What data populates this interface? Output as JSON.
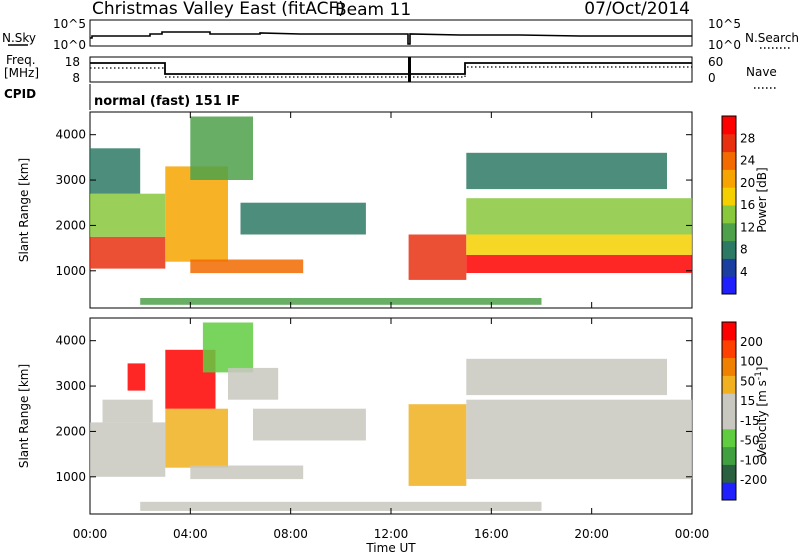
{
  "header": {
    "station": "Christmas Valley East (fitACF)",
    "beam": "Beam 11",
    "date": "07/Oct/2014"
  },
  "panels": {
    "nsky_label": "N.Sky",
    "nsearch_label": "N.Search",
    "noise_ticks_top": "10^5",
    "noise_ticks_bottom": "10^0",
    "freq_label_top": "Freq.",
    "freq_label_bottom": "[MHz]",
    "freq_ticks_top": "18",
    "freq_ticks_bottom": "8",
    "nave_label": "Nave",
    "nave_ticks_top": "60",
    "nave_ticks_bottom": "0",
    "cpid_label": "CPID",
    "cpid_value": "normal (fast) 151 IF"
  },
  "chart_data": [
    {
      "type": "heatmap",
      "name": "power",
      "ylabel": "Slant Range [km]",
      "xlabel": "Time UT",
      "x_ticks": [
        "00:00",
        "04:00",
        "08:00",
        "12:00",
        "16:00",
        "20:00",
        "00:00"
      ],
      "y_ticks": [
        "1000",
        "2000",
        "3000",
        "4000"
      ],
      "xlim_hours": [
        0,
        24
      ],
      "ylim_km": [
        180,
        4500
      ],
      "colorbar": {
        "label": "Power [dB]",
        "ticks": [
          "28",
          "24",
          "20",
          "16",
          "12",
          "8",
          "4"
        ],
        "range": [
          0,
          30
        ],
        "colors": [
          "#2020ff",
          "#1a3fa0",
          "#2d7a64",
          "#4ea14a",
          "#88c83c",
          "#f4d000",
          "#f7a400",
          "#f26a00",
          "#e83010",
          "#ff0000"
        ]
      },
      "regions": [
        {
          "t0": 0.0,
          "t1": 3.0,
          "r0": 1050,
          "r1": 1750,
          "level": 26
        },
        {
          "t0": 0.0,
          "t1": 3.0,
          "r0": 1750,
          "r1": 2700,
          "level": 14
        },
        {
          "t0": 0.0,
          "t1": 2.0,
          "r0": 2700,
          "r1": 3700,
          "level": 8
        },
        {
          "t0": 3.0,
          "t1": 5.5,
          "r0": 1200,
          "r1": 3300,
          "level": 18
        },
        {
          "t0": 4.0,
          "t1": 6.5,
          "r0": 3000,
          "r1": 4400,
          "level": 10
        },
        {
          "t0": 6.0,
          "t1": 11.0,
          "r0": 1800,
          "r1": 2500,
          "level": 8
        },
        {
          "t0": 4.0,
          "t1": 8.5,
          "r0": 950,
          "r1": 1250,
          "level": 22
        },
        {
          "t0": 12.7,
          "t1": 15.0,
          "r0": 800,
          "r1": 1800,
          "level": 26
        },
        {
          "t0": 15.0,
          "t1": 24.0,
          "r0": 950,
          "r1": 1350,
          "level": 28
        },
        {
          "t0": 15.0,
          "t1": 24.0,
          "r0": 1350,
          "r1": 1800,
          "level": 16
        },
        {
          "t0": 15.0,
          "t1": 24.0,
          "r0": 1800,
          "r1": 2600,
          "level": 12
        },
        {
          "t0": 15.0,
          "t1": 23.0,
          "r0": 2800,
          "r1": 3600,
          "level": 6
        },
        {
          "t0": 2.0,
          "t1": 18.0,
          "r0": 250,
          "r1": 400,
          "level": 10
        }
      ]
    },
    {
      "type": "heatmap",
      "name": "velocity",
      "ylabel": "Slant Range [km]",
      "xlabel": "Time UT",
      "x_ticks": [
        "00:00",
        "04:00",
        "08:00",
        "12:00",
        "16:00",
        "20:00",
        "00:00"
      ],
      "y_ticks": [
        "1000",
        "2000",
        "3000",
        "4000"
      ],
      "xlim_hours": [
        0,
        24
      ],
      "ylim_km": [
        180,
        4500
      ],
      "colorbar": {
        "label": "Velocity [m s^-1]",
        "ticks": [
          "200",
          "100",
          "50",
          "15",
          "-15",
          "-50",
          "-100",
          "-200"
        ],
        "range": [
          -250,
          250
        ],
        "colors": [
          "#2020ff",
          "#2a6040",
          "#40a040",
          "#60cc40",
          "#c8c8c0",
          "#c8c8c0",
          "#f0b020",
          "#f08000",
          "#ff4000",
          "#ff0000"
        ]
      },
      "regions": [
        {
          "t0": 0.0,
          "t1": 3.0,
          "r0": 1000,
          "r1": 2200,
          "level": 0
        },
        {
          "t0": 0.5,
          "t1": 2.5,
          "r0": 2200,
          "r1": 2700,
          "level": -40
        },
        {
          "t0": 1.5,
          "t1": 2.2,
          "r0": 2900,
          "r1": 3500,
          "level": 220
        },
        {
          "t0": 3.0,
          "t1": 5.0,
          "r0": 2500,
          "r1": 3800,
          "level": 220
        },
        {
          "t0": 3.0,
          "t1": 5.5,
          "r0": 1200,
          "r1": 2500,
          "level": 70
        },
        {
          "t0": 4.5,
          "t1": 6.5,
          "r0": 3300,
          "r1": 4400,
          "level": -60
        },
        {
          "t0": 5.5,
          "t1": 7.5,
          "r0": 2700,
          "r1": 3400,
          "level": 0
        },
        {
          "t0": 6.5,
          "t1": 11.0,
          "r0": 1800,
          "r1": 2500,
          "level": -40
        },
        {
          "t0": 4.0,
          "t1": 8.5,
          "r0": 950,
          "r1": 1250,
          "level": 0
        },
        {
          "t0": 12.7,
          "t1": 15.0,
          "r0": 800,
          "r1": 2600,
          "level": 70
        },
        {
          "t0": 15.0,
          "t1": 24.0,
          "r0": 950,
          "r1": 1900,
          "level": 0
        },
        {
          "t0": 15.0,
          "t1": 24.0,
          "r0": 1900,
          "r1": 2700,
          "level": 0
        },
        {
          "t0": 15.0,
          "t1": 23.0,
          "r0": 2800,
          "r1": 3600,
          "level": 0
        },
        {
          "t0": 2.0,
          "t1": 18.0,
          "r0": 250,
          "r1": 450,
          "level": -40
        }
      ]
    }
  ]
}
